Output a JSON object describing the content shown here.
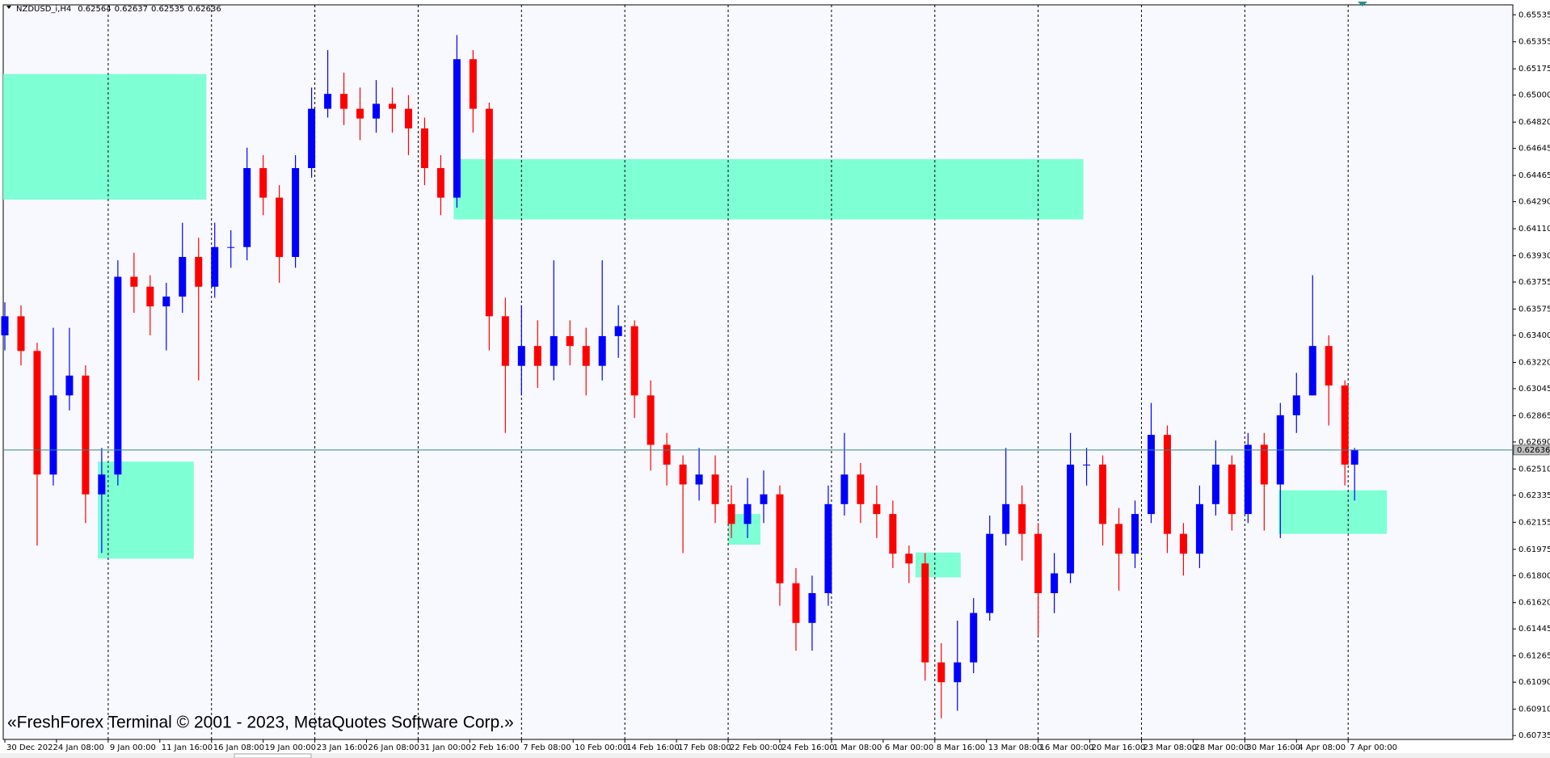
{
  "header": {
    "symbol": "NZDUSD_i,H4",
    "ohlc": [
      0.62564,
      0.62637,
      0.62535,
      0.62636
    ]
  },
  "watermark": "«FreshForex Terminal © 2001 - 2023, MetaQuotes Software Corp.»",
  "chart_data": {
    "type": "candlestick",
    "up_color": "#0000ff",
    "down_color": "#ff0000",
    "zone_color": "#7fffd4",
    "price_line_color": "#2e8b8b",
    "grid": true,
    "x": [
      0,
      5,
      10,
      15,
      20,
      25,
      30,
      35,
      40,
      45,
      50,
      55,
      60,
      65,
      70,
      75,
      80,
      85,
      90,
      95,
      100,
      105,
      110,
      115,
      120,
      125,
      130,
      135,
      140,
      145,
      150,
      155,
      160,
      165,
      170,
      175,
      180,
      185,
      190,
      195,
      200,
      205,
      210,
      215,
      220,
      225,
      230,
      235,
      240,
      245,
      250,
      255,
      260,
      265,
      270,
      275,
      280,
      285,
      290,
      295,
      300,
      305,
      310,
      315,
      320,
      325,
      330,
      335,
      340,
      345,
      350,
      355,
      360,
      365,
      370,
      375,
      380,
      385,
      390,
      395,
      400,
      405,
      410,
      415,
      418
    ],
    "open": [
      0.634,
      0.63527,
      0.63296,
      0.62473,
      0.63,
      0.63132,
      0.62341,
      0.62473,
      0.6379,
      0.63724,
      0.63593,
      0.63658,
      0.63922,
      0.63724,
      0.63988,
      0.63988,
      0.64514,
      0.64317,
      0.63922,
      0.64514,
      0.64909,
      0.65008,
      0.64909,
      0.64844,
      0.64942,
      0.64909,
      0.64778,
      0.64514,
      0.64317,
      0.65239,
      0.64909,
      0.63527,
      0.63197,
      0.63329,
      0.63197,
      0.63395,
      0.63329,
      0.63197,
      0.63395,
      0.63461,
      0.63,
      0.62671,
      0.62539,
      0.62407,
      0.62473,
      0.62276,
      0.62144,
      0.62276,
      0.62341,
      0.61749,
      0.61485,
      0.61683,
      0.62276,
      0.62473,
      0.62276,
      0.6221,
      0.61946,
      0.61881,
      0.61222,
      0.6109,
      0.61222,
      0.61551,
      0.62078,
      0.62276,
      0.62078,
      0.61683,
      0.61815,
      0.62539,
      0.62539,
      0.62144,
      0.61946,
      0.6221,
      0.62737,
      0.62078,
      0.61946,
      0.62276,
      0.62539,
      0.6221,
      0.62671,
      0.62407,
      0.62868,
      0.63,
      0.63329,
      0.63066,
      0.62539
    ],
    "high": [
      0.6362,
      0.636,
      0.6335,
      0.6345,
      0.6345,
      0.632,
      0.6265,
      0.639,
      0.6395,
      0.638,
      0.6375,
      0.6415,
      0.6405,
      0.6415,
      0.641,
      0.6465,
      0.646,
      0.644,
      0.646,
      0.6505,
      0.653,
      0.6515,
      0.6505,
      0.651,
      0.6505,
      0.65,
      0.6485,
      0.646,
      0.654,
      0.653,
      0.6495,
      0.6365,
      0.636,
      0.635,
      0.639,
      0.635,
      0.6345,
      0.639,
      0.636,
      0.635,
      0.631,
      0.6275,
      0.626,
      0.6265,
      0.626,
      0.624,
      0.6245,
      0.625,
      0.624,
      0.6185,
      0.618,
      0.624,
      0.6275,
      0.6255,
      0.624,
      0.623,
      0.62,
      0.6195,
      0.6135,
      0.615,
      0.6165,
      0.622,
      0.6265,
      0.624,
      0.6215,
      0.6195,
      0.6275,
      0.6265,
      0.626,
      0.6225,
      0.623,
      0.6295,
      0.628,
      0.6215,
      0.624,
      0.627,
      0.626,
      0.6275,
      0.6275,
      0.6295,
      0.6315,
      0.638,
      0.634,
      0.631,
      0.6265
    ],
    "low": [
      0.633,
      0.632,
      0.62,
      0.624,
      0.629,
      0.6215,
      0.6195,
      0.624,
      0.6355,
      0.634,
      0.633,
      0.6355,
      0.631,
      0.6365,
      0.6385,
      0.639,
      0.642,
      0.6375,
      0.6385,
      0.6445,
      0.6485,
      0.648,
      0.647,
      0.6475,
      0.6475,
      0.646,
      0.644,
      0.642,
      0.6425,
      0.6475,
      0.633,
      0.6275,
      0.63,
      0.6305,
      0.631,
      0.632,
      0.63,
      0.631,
      0.6325,
      0.6285,
      0.625,
      0.624,
      0.6195,
      0.623,
      0.6215,
      0.6205,
      0.6205,
      0.6215,
      0.616,
      0.613,
      0.613,
      0.616,
      0.622,
      0.6215,
      0.6205,
      0.6185,
      0.6175,
      0.611,
      0.6085,
      0.609,
      0.6115,
      0.615,
      0.62,
      0.619,
      0.614,
      0.6155,
      0.6175,
      0.624,
      0.62,
      0.617,
      0.6185,
      0.6215,
      0.6195,
      0.618,
      0.6185,
      0.622,
      0.621,
      0.6215,
      0.621,
      0.6205,
      0.6275,
      0.63,
      0.628,
      0.624,
      0.623
    ],
    "close": [
      0.63527,
      0.63296,
      0.62473,
      0.63,
      0.63132,
      0.62341,
      0.62473,
      0.6379,
      0.63724,
      0.63593,
      0.63658,
      0.63922,
      0.63724,
      0.63988,
      0.63988,
      0.64514,
      0.64317,
      0.63922,
      0.64514,
      0.64909,
      0.65008,
      0.64909,
      0.64844,
      0.64942,
      0.64909,
      0.64778,
      0.64514,
      0.64317,
      0.65239,
      0.64909,
      0.63527,
      0.63197,
      0.63329,
      0.63197,
      0.63395,
      0.63329,
      0.63197,
      0.63395,
      0.63461,
      0.63,
      0.62671,
      0.62539,
      0.62407,
      0.62473,
      0.62276,
      0.62144,
      0.62276,
      0.62341,
      0.61749,
      0.61485,
      0.61683,
      0.62276,
      0.62473,
      0.62276,
      0.6221,
      0.61946,
      0.61881,
      0.61222,
      0.6109,
      0.61222,
      0.61551,
      0.62078,
      0.62276,
      0.62078,
      0.61683,
      0.61815,
      0.62539,
      0.62539,
      0.62144,
      0.61946,
      0.6221,
      0.62737,
      0.62078,
      0.61946,
      0.62276,
      0.62539,
      0.6221,
      0.62671,
      0.62407,
      0.62868,
      0.63,
      0.63329,
      0.63066,
      0.62539,
      0.62636
    ],
    "zones": [
      {
        "x": [
          -0.6,
          62.4
        ],
        "y": [
          0.6514,
          0.64304
        ]
      },
      {
        "x": [
          139,
          334
        ],
        "y": [
          0.64574,
          0.64172
        ]
      },
      {
        "x": [
          28.8,
          58.5
        ],
        "y": [
          0.62559,
          0.61913
        ]
      },
      {
        "x": [
          224,
          234
        ],
        "y": [
          0.6221,
          0.62006
        ]
      },
      {
        "x": [
          282,
          296
        ],
        "y": [
          0.61953,
          0.61788
        ]
      },
      {
        "x": [
          394.5,
          428
        ],
        "y": [
          0.62368,
          0.62078
        ]
      }
    ],
    "current_price": 0.62636,
    "xlim": [
      -0.5,
      467
    ],
    "ylim": [
      0.60709,
      0.65601
    ],
    "xticks": [
      {
        "value": 0,
        "label": "30 Dec 2022"
      },
      {
        "value": 16,
        "label": "4 Jan 08:00"
      },
      {
        "value": 32,
        "label": "9 Jan 00:00"
      },
      {
        "value": 48,
        "label": "11 Jan 16:00"
      },
      {
        "value": 64,
        "label": "16 Jan 08:00"
      },
      {
        "value": 80,
        "label": "19 Jan 00:00"
      },
      {
        "value": 96,
        "label": "23 Jan 16:00"
      },
      {
        "value": 112,
        "label": "26 Jan 08:00"
      },
      {
        "value": 128,
        "label": "31 Jan 00:00"
      },
      {
        "value": 144,
        "label": "2 Feb 16:00"
      },
      {
        "value": 160,
        "label": "7 Feb 08:00"
      },
      {
        "value": 176,
        "label": "10 Feb 00:00"
      },
      {
        "value": 192,
        "label": "14 Feb 16:00"
      },
      {
        "value": 208,
        "label": "17 Feb 08:00"
      },
      {
        "value": 224,
        "label": "22 Feb 00:00"
      },
      {
        "value": 240,
        "label": "24 Feb 16:00"
      },
      {
        "value": 256,
        "label": "1 Mar 08:00"
      },
      {
        "value": 272,
        "label": "6 Mar 00:00"
      },
      {
        "value": 288,
        "label": "8 Mar 16:00"
      },
      {
        "value": 304,
        "label": "13 Mar 08:00"
      },
      {
        "value": 320,
        "label": "16 Mar 00:00"
      },
      {
        "value": 336,
        "label": "20 Mar 16:00"
      },
      {
        "value": 352,
        "label": "23 Mar 08:00"
      },
      {
        "value": 368,
        "label": "28 Mar 00:00"
      },
      {
        "value": 384,
        "label": "30 Mar 16:00"
      },
      {
        "value": 400,
        "label": "4 Apr 08:00"
      },
      {
        "value": 416,
        "label": "7 Apr 00:00"
      }
    ],
    "yticks": [
      0.65535,
      0.65355,
      0.65175,
      {
        "value": 0.65,
        "label": "0.65000"
      },
      {
        "value": 0.6482,
        "label": "0.64820"
      },
      0.64645,
      0.64465,
      {
        "value": 0.6429,
        "label": "0.64290"
      },
      {
        "value": 0.6411,
        "label": "0.64110"
      },
      {
        "value": 0.6393,
        "label": "0.63930"
      },
      0.63755,
      0.63575,
      {
        "value": 0.634,
        "label": "0.63400"
      },
      {
        "value": 0.6322,
        "label": "0.63220"
      },
      0.63045,
      0.62865,
      {
        "value": 0.6269,
        "label": "0.62690"
      },
      {
        "value": 0.6251,
        "label": "0.62510"
      },
      0.62335,
      0.62155,
      0.61975,
      {
        "value": 0.618,
        "label": "0.61800"
      },
      {
        "value": 0.6162,
        "label": "0.61620"
      },
      0.61445,
      0.61265,
      {
        "value": 0.6109,
        "label": "0.61090"
      },
      {
        "value": 0.6091,
        "label": "0.60910"
      },
      0.60735
    ]
  }
}
